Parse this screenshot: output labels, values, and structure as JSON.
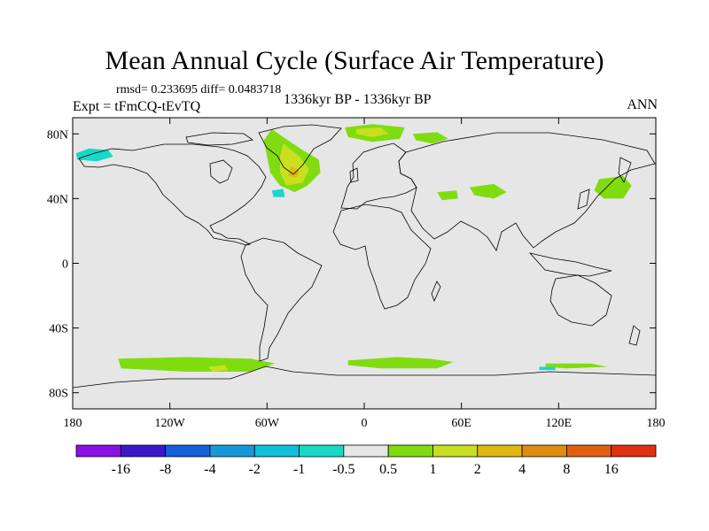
{
  "chart_data": {
    "type": "heatmap",
    "title": "Mean Annual Cycle (Surface Air Temperature)",
    "stats_line": "rmsd= 0.233695 diff= 0.0483718",
    "experiment": "Expt = tFmCQ-tEvTQ",
    "period": "1336kyr BP - 1336kyr BP",
    "season": "ANN",
    "xlim": [
      -180,
      180
    ],
    "ylim": [
      -90,
      90
    ],
    "x_ticks": [
      {
        "value": -180,
        "label": "180"
      },
      {
        "value": -120,
        "label": "120W"
      },
      {
        "value": -60,
        "label": "60W"
      },
      {
        "value": 0,
        "label": "0"
      },
      {
        "value": 60,
        "label": "60E"
      },
      {
        "value": 120,
        "label": "120E"
      },
      {
        "value": 180,
        "label": "180"
      }
    ],
    "y_ticks": [
      {
        "value": 80,
        "label": "80N"
      },
      {
        "value": 40,
        "label": "40N"
      },
      {
        "value": 0,
        "label": "0"
      },
      {
        "value": -40,
        "label": "40S"
      },
      {
        "value": -80,
        "label": "80S"
      }
    ],
    "colorbar": {
      "colors": [
        "#8a10e6",
        "#3818c8",
        "#1460d8",
        "#1898d8",
        "#10c0d8",
        "#18d8c8",
        "#e6e6e6",
        "#80dc10",
        "#c8e020",
        "#e0b810",
        "#e08c10",
        "#e06010",
        "#e03010"
      ],
      "labels": [
        "-16",
        "-8",
        "-4",
        "-2",
        "-1",
        "-0.5",
        "0.5",
        "1",
        "2",
        "4",
        "8",
        "16"
      ]
    },
    "anomaly_regions": [
      {
        "name": "north-atlantic-warm",
        "color": "#80dc10",
        "points": [
          [
            -57,
            83
          ],
          [
            -50,
            78
          ],
          [
            -38,
            70
          ],
          [
            -28,
            64
          ],
          [
            -27,
            56
          ],
          [
            -35,
            48
          ],
          [
            -43,
            44
          ],
          [
            -52,
            48
          ],
          [
            -58,
            56
          ],
          [
            -60,
            66
          ],
          [
            -62,
            76
          ]
        ]
      },
      {
        "name": "north-atlantic-core",
        "color": "#c8e020",
        "points": [
          [
            -50,
            74
          ],
          [
            -40,
            66
          ],
          [
            -34,
            58
          ],
          [
            -38,
            50
          ],
          [
            -48,
            48
          ],
          [
            -52,
            56
          ],
          [
            -52,
            66
          ]
        ]
      },
      {
        "name": "north-atlantic-center",
        "color": "#e0b810",
        "points": [
          [
            -45,
            60
          ],
          [
            -40,
            57
          ],
          [
            -42,
            53
          ],
          [
            -47,
            54
          ]
        ]
      },
      {
        "name": "arctic-warm",
        "color": "#80dc10",
        "points": [
          [
            -12,
            84
          ],
          [
            5,
            86
          ],
          [
            25,
            84
          ],
          [
            22,
            77
          ],
          [
            5,
            75
          ],
          [
            -10,
            78
          ]
        ]
      },
      {
        "name": "arctic-core",
        "color": "#c8e020",
        "points": [
          [
            -5,
            83
          ],
          [
            10,
            84
          ],
          [
            15,
            80
          ],
          [
            5,
            78
          ],
          [
            -5,
            80
          ]
        ]
      },
      {
        "name": "barents-warm",
        "color": "#80dc10",
        "points": [
          [
            30,
            80
          ],
          [
            45,
            81
          ],
          [
            52,
            77
          ],
          [
            42,
            74
          ],
          [
            32,
            76
          ]
        ]
      },
      {
        "name": "north-pacific-warm",
        "color": "#80dc10",
        "points": [
          [
            145,
            52
          ],
          [
            160,
            54
          ],
          [
            165,
            48
          ],
          [
            160,
            40
          ],
          [
            148,
            40
          ],
          [
            142,
            45
          ]
        ]
      },
      {
        "name": "central-asia-warm",
        "color": "#80dc10",
        "points": [
          [
            65,
            47
          ],
          [
            80,
            49
          ],
          [
            88,
            44
          ],
          [
            80,
            40
          ],
          [
            68,
            42
          ]
        ]
      },
      {
        "name": "west-asia-warm",
        "color": "#80dc10",
        "points": [
          [
            45,
            44
          ],
          [
            57,
            45
          ],
          [
            58,
            40
          ],
          [
            48,
            39
          ]
        ]
      },
      {
        "name": "bering-cool",
        "color": "#18d8c8",
        "points": [
          [
            -178,
            68
          ],
          [
            -170,
            71
          ],
          [
            -158,
            70
          ],
          [
            -155,
            66
          ],
          [
            -165,
            63
          ],
          [
            -177,
            64
          ]
        ]
      },
      {
        "name": "labrador-cool",
        "color": "#18d8c8",
        "points": [
          [
            -57,
            45
          ],
          [
            -50,
            46
          ],
          [
            -49,
            41
          ],
          [
            -56,
            41
          ]
        ]
      },
      {
        "name": "southern-ocean-pacific-warm",
        "color": "#80dc10",
        "points": [
          [
            -152,
            -59
          ],
          [
            -110,
            -58
          ],
          [
            -70,
            -59
          ],
          [
            -55,
            -62
          ],
          [
            -70,
            -67
          ],
          [
            -110,
            -67
          ],
          [
            -150,
            -65
          ]
        ]
      },
      {
        "name": "southern-ocean-pacific-core",
        "color": "#c8e020",
        "points": [
          [
            -96,
            -64
          ],
          [
            -86,
            -63
          ],
          [
            -84,
            -66
          ],
          [
            -94,
            -67
          ]
        ]
      },
      {
        "name": "southern-ocean-indian-warm",
        "color": "#80dc10",
        "points": [
          [
            -10,
            -60
          ],
          [
            20,
            -58
          ],
          [
            40,
            -59
          ],
          [
            55,
            -61
          ],
          [
            45,
            -65
          ],
          [
            10,
            -65
          ],
          [
            -10,
            -63
          ]
        ]
      },
      {
        "name": "southern-ocean-east-warm",
        "color": "#80dc10",
        "points": [
          [
            112,
            -62
          ],
          [
            140,
            -62
          ],
          [
            150,
            -64
          ],
          [
            125,
            -65
          ],
          [
            112,
            -64
          ]
        ]
      },
      {
        "name": "southern-ocean-east-cool",
        "color": "#18d8c8",
        "points": [
          [
            108,
            -64
          ],
          [
            118,
            -64
          ],
          [
            118,
            -66
          ],
          [
            108,
            -66
          ]
        ]
      }
    ]
  }
}
